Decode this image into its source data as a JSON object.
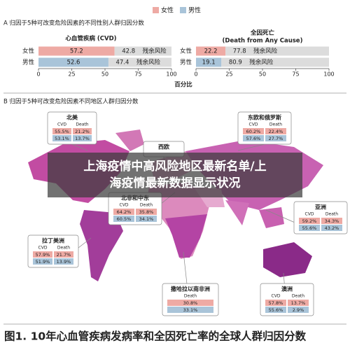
{
  "legend": {
    "female": "女性",
    "male": "男性",
    "female_color": "#eeaaa4",
    "male_color": "#a9c4d9"
  },
  "panel_a": {
    "title": "A 归因于5种可改变危险因素的不同性别人群归因分数",
    "x_label": "百分比",
    "residual_label": "残余风险",
    "residual_color": "#dcdcdc",
    "xlim": [
      0,
      100
    ],
    "ticks": [
      0,
      25,
      50,
      75,
      100
    ],
    "charts": [
      {
        "title": [
          "心血管疾病 (CVD)"
        ],
        "rows": [
          {
            "label": "女性",
            "value": 57.2,
            "residual": 42.8
          },
          {
            "label": "男性",
            "value": 52.6,
            "residual": 47.4
          }
        ]
      },
      {
        "title": [
          "全因死亡",
          "(Death from Any Cause)"
        ],
        "rows": [
          {
            "label": "女性",
            "value": 22.2,
            "residual": 77.8
          },
          {
            "label": "男性",
            "value": 19.1,
            "residual": 80.9
          }
        ]
      }
    ]
  },
  "panel_b": {
    "title": "B 归因于5种可改变危险因素不同地区人群归因分数",
    "regions": [
      {
        "name": "北美",
        "columns": [
          "CVD",
          "Death"
        ],
        "rows": [
          [
            "55.5%",
            "21.2%"
          ],
          [
            "53.1%",
            "13.7%"
          ]
        ]
      },
      {
        "name": "东欧和俄罗斯",
        "columns": [
          "CVD",
          "Death"
        ],
        "rows": [
          [
            "60.2%",
            "22.4%"
          ],
          [
            "57.6%",
            "27.7%"
          ]
        ]
      },
      {
        "name": "西欧",
        "columns": [],
        "rows": []
      },
      {
        "name": "北非和中东",
        "columns": [
          "CVD",
          "Death"
        ],
        "rows": [
          [
            "64.2%",
            "35.8%"
          ],
          [
            "60.5%",
            "34.1%"
          ]
        ]
      },
      {
        "name": "亚洲",
        "columns": [
          "CVD",
          "Death"
        ],
        "rows": [
          [
            "59.2%",
            "34.3%"
          ],
          [
            "55.6%",
            "43.2%"
          ]
        ]
      },
      {
        "name": "拉丁美洲",
        "columns": [
          "CVD",
          "Death"
        ],
        "rows": [
          [
            "57.9%",
            "21.7%"
          ],
          [
            "51.9%",
            "13.9%"
          ]
        ]
      },
      {
        "name": "撒哈拉以南非洲",
        "columns": [
          "Death"
        ],
        "rows": [
          [
            "30.8%"
          ],
          [
            "33.1%"
          ]
        ]
      },
      {
        "name": "澳洲",
        "columns": [
          "CVD",
          "Death"
        ],
        "rows": [
          [
            "57.8%",
            "13.7%"
          ],
          [
            "55.6%",
            "2.9%"
          ]
        ]
      }
    ]
  },
  "banner": {
    "lines": [
      "上海疫情中高风险地区最新名单/上",
      "海疫情最新数据显示状况"
    ]
  },
  "caption": "图1. 10年心血管疾病发病率和全因死亡率的全球人群归因分数"
}
